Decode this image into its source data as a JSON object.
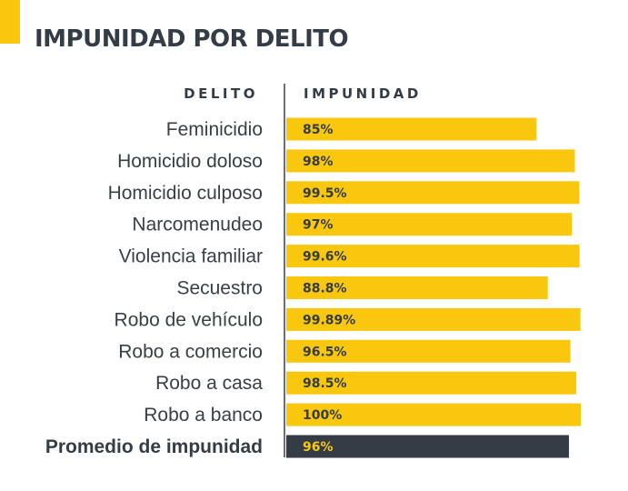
{
  "title": "IMPUNIDAD POR DELITO",
  "colors": {
    "accent": "#f9c80e",
    "bar": "#f9c80e",
    "average_bar": "#343c45",
    "text": "#343c45"
  },
  "chart_data": {
    "type": "bar",
    "orientation": "horizontal",
    "title": "IMPUNIDAD POR DELITO",
    "category_header": "DELITO",
    "value_header": "IMPUNIDAD",
    "categories": [
      "Feminicidio",
      "Homicidio doloso",
      "Homicidio culposo",
      "Narcomenudeo",
      "Violencia familiar",
      "Secuestro",
      "Robo de vehículo",
      "Robo a comercio",
      "Robo a casa",
      "Robo a banco"
    ],
    "values": [
      85,
      98,
      99.5,
      97,
      99.6,
      88.8,
      99.89,
      96.5,
      98.5,
      100
    ],
    "value_labels": [
      "85%",
      "98%",
      "99.5%",
      "97%",
      "99.6%",
      "88.8%",
      "99.89%",
      "96.5%",
      "98.5%",
      "100%"
    ],
    "average": {
      "label": "Promedio de impunidad",
      "value": 96,
      "value_label": "96%"
    },
    "xlim": [
      0,
      100
    ],
    "grid": false,
    "legend": "none"
  }
}
